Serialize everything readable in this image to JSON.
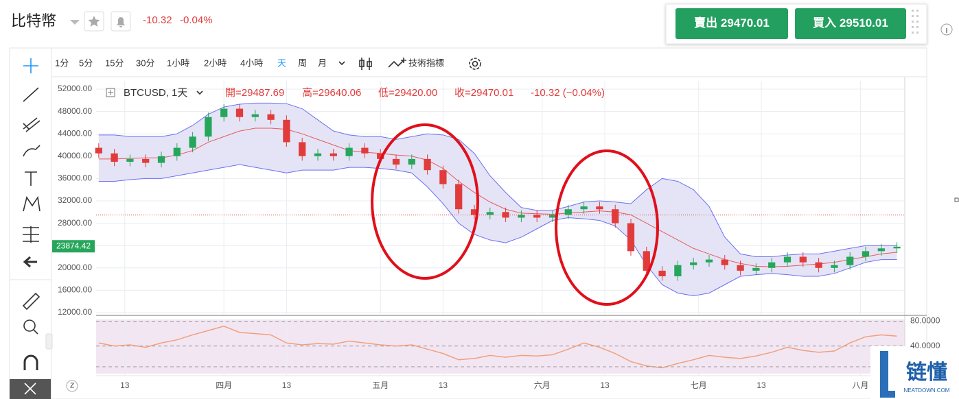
{
  "header": {
    "symbol": "比特幣",
    "change": -10.32,
    "change_pct": "-0.04%",
    "sell": {
      "label": "賣出",
      "price": 29470.01
    },
    "buy": {
      "label": "買入",
      "price": 29510.01
    }
  },
  "toolbar": {
    "intervals": [
      "1分",
      "5分",
      "15分",
      "30分",
      "1小時",
      "2小時",
      "4小時",
      "天",
      "周",
      "月"
    ],
    "indicators": "技術指標"
  },
  "legend": {
    "symbol": "BTCUSD, 1天",
    "ohlc": [
      "開=29487.69",
      "高=29640.06",
      "低=29420.00",
      "收=29470.01"
    ],
    "change": "-10.32 (−0.04%)"
  },
  "chart_data": [
    {
      "type": "candlestick",
      "up_color": "#26a65b",
      "down_color": "#e23b3b",
      "x": [
        0,
        3,
        6,
        9,
        12,
        15,
        18,
        21,
        24,
        27,
        30,
        33,
        36,
        39,
        42,
        45,
        48,
        51,
        54,
        57,
        60,
        63,
        66,
        69,
        72,
        75,
        78,
        81,
        84,
        87,
        90,
        93,
        96,
        99,
        102,
        105,
        108,
        111,
        114,
        117,
        120,
        123,
        126,
        129,
        132,
        135,
        138,
        141,
        144,
        147,
        150,
        153
      ],
      "open": [
        41500,
        40500,
        39000,
        39500,
        38800,
        40000,
        41500,
        43500,
        47000,
        48500,
        47000,
        47500,
        46500,
        42500,
        40000,
        40500,
        40000,
        41500,
        40500,
        39500,
        38500,
        39500,
        37500,
        35000,
        30500,
        29500,
        30000,
        29000,
        29500,
        29000,
        29500,
        30500,
        31000,
        30500,
        28000,
        23000,
        19500,
        18500,
        20500,
        21000,
        21500,
        20500,
        19500,
        20000,
        21000,
        22000,
        21000,
        20000,
        20500,
        22000,
        23000,
        23500
      ],
      "high": [
        42300,
        41300,
        40300,
        40300,
        40800,
        42300,
        44300,
        47800,
        49300,
        49300,
        48300,
        48300,
        47300,
        43300,
        41300,
        41300,
        42300,
        42300,
        41300,
        40300,
        40300,
        40300,
        38300,
        35800,
        31300,
        30800,
        30800,
        30300,
        30300,
        30300,
        31300,
        31800,
        31800,
        31300,
        28800,
        23800,
        20300,
        21300,
        21800,
        22300,
        22300,
        21300,
        20800,
        21800,
        22800,
        22800,
        21800,
        21300,
        22800,
        23800,
        24300,
        24600
      ],
      "low": [
        39700,
        38200,
        38200,
        38000,
        38000,
        39200,
        40700,
        42700,
        46200,
        46200,
        46200,
        45700,
        41700,
        39200,
        39200,
        39200,
        39200,
        39700,
        38700,
        37700,
        37700,
        36700,
        34200,
        29700,
        28700,
        28700,
        28200,
        28200,
        28200,
        28200,
        28700,
        29700,
        29700,
        27200,
        22200,
        18700,
        17700,
        17700,
        19700,
        20200,
        19700,
        18700,
        18700,
        19200,
        20200,
        20200,
        19200,
        19200,
        19700,
        21200,
        22200,
        22700
      ],
      "close": [
        40500,
        39000,
        39500,
        38800,
        40000,
        41500,
        43500,
        47000,
        48500,
        47000,
        47500,
        46500,
        42500,
        40000,
        40500,
        40000,
        41500,
        40500,
        39500,
        38500,
        39500,
        37500,
        35000,
        30500,
        29500,
        30000,
        29000,
        29500,
        29000,
        29500,
        30500,
        31000,
        30500,
        28000,
        23000,
        19500,
        18500,
        20500,
        21000,
        21500,
        20500,
        19500,
        20000,
        21000,
        22000,
        21000,
        20000,
        20500,
        22000,
        23000,
        23500,
        23800
      ],
      "overlays": [
        {
          "color": "#6b6ff0",
          "values": [
            43800,
            43800,
            43500,
            43500,
            43500,
            44000,
            45500,
            47500,
            48800,
            49300,
            49500,
            49500,
            49400,
            48500,
            46500,
            44500,
            43800,
            43500,
            43500,
            43000,
            43500,
            44000,
            43800,
            43000,
            40500,
            36500,
            33500,
            30800,
            30300,
            30300,
            31000,
            31800,
            32000,
            31800,
            31500,
            34000,
            36000,
            35500,
            34000,
            31000,
            25500,
            22500,
            22000,
            22000,
            22300,
            22500,
            22500,
            23000,
            23500,
            24000,
            24000,
            24000
          ]
        },
        {
          "color": "#e85a5a",
          "values": [
            39500,
            39500,
            39600,
            39700,
            39700,
            40200,
            41000,
            42500,
            43500,
            44500,
            45000,
            45000,
            44800,
            44000,
            43000,
            42000,
            41000,
            40700,
            40500,
            40200,
            40000,
            39300,
            37800,
            35500,
            33500,
            31800,
            30500,
            29800,
            29700,
            29600,
            29800,
            30000,
            30200,
            30000,
            29500,
            28000,
            26500,
            25000,
            23500,
            22500,
            21500,
            20800,
            20300,
            20200,
            20300,
            20500,
            20700,
            21000,
            21500,
            22000,
            22500,
            22800
          ]
        },
        {
          "color": "#6b6ff0",
          "values": [
            35500,
            35500,
            35800,
            36000,
            36000,
            36500,
            37000,
            37500,
            38000,
            38500,
            38000,
            37500,
            37000,
            37500,
            37500,
            37500,
            38000,
            38000,
            37800,
            37500,
            37000,
            34500,
            31500,
            28000,
            26000,
            25000,
            24500,
            25500,
            27000,
            28500,
            29000,
            28800,
            28500,
            27500,
            25000,
            20500,
            17000,
            15500,
            15000,
            15500,
            17000,
            18500,
            18800,
            19000,
            18800,
            18500,
            18500,
            19000,
            20000,
            21000,
            21500,
            21500
          ]
        }
      ],
      "band_fill": "#e4e4f6",
      "xlim": [
        -0.5,
        154.5
      ],
      "xticks": [
        {
          "value": 5,
          "label": "13"
        },
        {
          "value": 24,
          "label": "四月"
        },
        {
          "value": 36,
          "label": "13"
        },
        {
          "value": 54,
          "label": "五月"
        },
        {
          "value": 66,
          "label": "13"
        },
        {
          "value": 85,
          "label": "六月"
        },
        {
          "value": 97,
          "label": "13"
        },
        {
          "value": 115,
          "label": "七月"
        },
        {
          "value": 127,
          "label": "13"
        },
        {
          "value": 146,
          "label": "八月"
        }
      ],
      "ylim": [
        12000,
        52000
      ],
      "yticks": [
        {
          "value": 52000,
          "label": "52000.00"
        },
        {
          "value": 48000,
          "label": "48000.00"
        },
        {
          "value": 44000,
          "label": "44000.00"
        },
        {
          "value": 40000,
          "label": "40000.00"
        },
        {
          "value": 36000,
          "label": "36000.00"
        },
        {
          "value": 32000,
          "label": "32000.00"
        },
        {
          "value": 28000,
          "label": "28000.00"
        },
        {
          "value": 24000,
          "label": "24000.00"
        },
        {
          "value": 20000,
          "label": "20000.00"
        },
        {
          "value": 16000,
          "label": "16000.00"
        },
        {
          "value": 12000,
          "label": "12000.00"
        }
      ],
      "grid": true,
      "price_tag": 23874.42
    },
    {
      "type": "line",
      "color": "#f0a07a",
      "background": "#f3e6f3",
      "values": [
        45,
        40,
        42,
        38,
        45,
        50,
        58,
        65,
        72,
        62,
        60,
        58,
        45,
        42,
        44,
        43,
        48,
        45,
        42,
        40,
        42,
        35,
        28,
        18,
        20,
        25,
        22,
        25,
        24,
        26,
        35,
        45,
        38,
        28,
        15,
        8,
        5,
        12,
        18,
        25,
        22,
        20,
        24,
        30,
        38,
        33,
        30,
        32,
        45,
        55,
        58,
        56
      ],
      "ylim": [
        0,
        85
      ],
      "yticks": [
        {
          "value": 80,
          "label": "80.0000"
        },
        {
          "value": 40,
          "label": "40.0000"
        }
      ]
    }
  ],
  "watermark": {
    "name": "链懂",
    "site": "NEATDOWN.COM"
  }
}
